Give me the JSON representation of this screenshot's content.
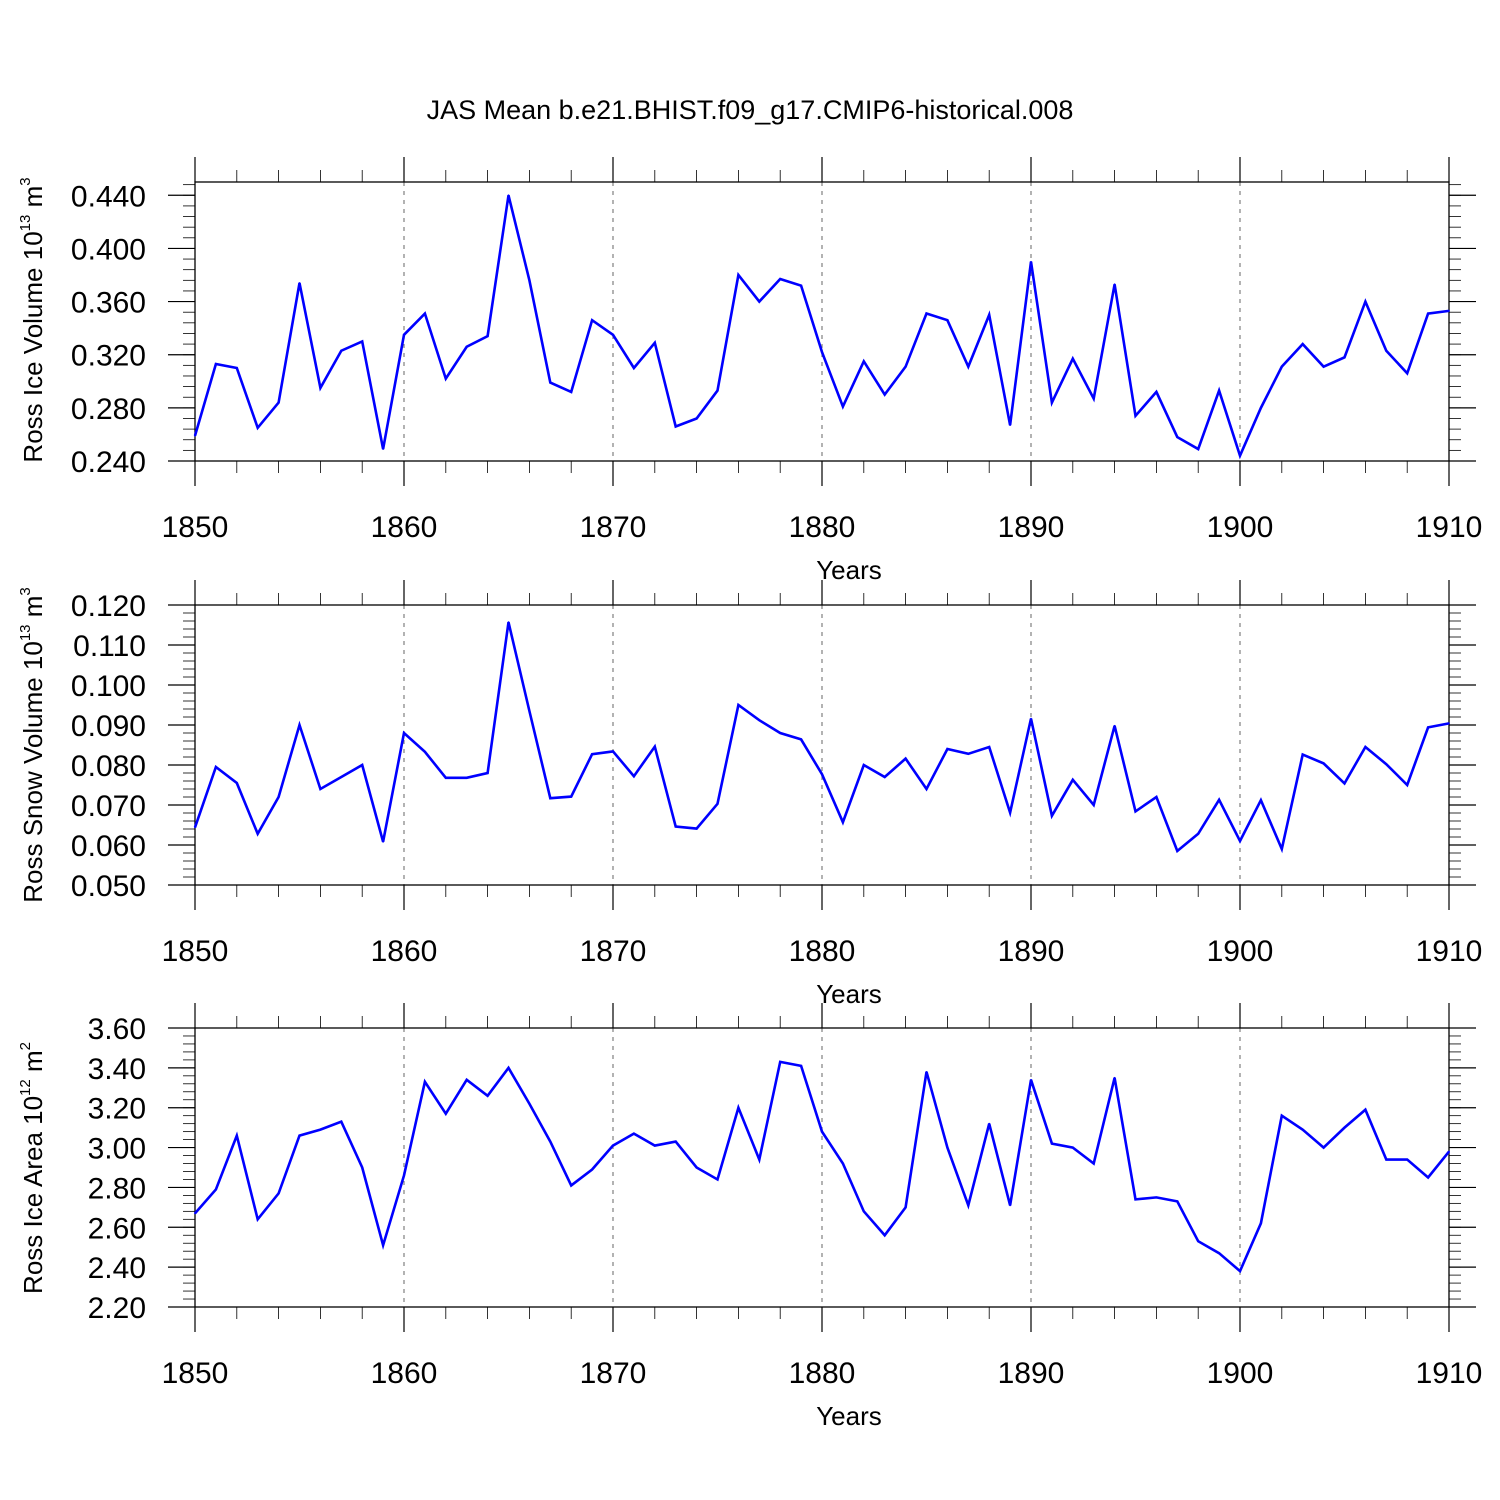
{
  "title": "JAS Mean b.e21.BHIST.f09_g17.CMIP6-historical.008",
  "colors": {
    "line": "#0000ff",
    "grid": "#808080",
    "axis": "#000000"
  },
  "chart_data": [
    {
      "type": "line",
      "title": "JAS Mean b.e21.BHIST.f09_g17.CMIP6-historical.008",
      "ylabel": {
        "text": "Ross Ice Volume 10",
        "exp": "13",
        "unit": " m",
        "unit_exp": "3"
      },
      "xlabel": "Years",
      "xlim": [
        1850,
        1910
      ],
      "ylim": [
        0.24,
        0.45
      ],
      "x_ticks": [
        1850,
        1860,
        1870,
        1880,
        1890,
        1900,
        1910
      ],
      "x_tick_labels": [
        "1850",
        "1860",
        "1870",
        "1880",
        "1890",
        "1900",
        "1910"
      ],
      "y_ticks": [
        0.24,
        0.28,
        0.32,
        0.36,
        0.4,
        0.44
      ],
      "y_tick_labels": [
        "0.240",
        "0.280",
        "0.320",
        "0.360",
        "0.400",
        "0.440"
      ],
      "y_minor_step": 0.008,
      "grid_x": true,
      "series": [
        {
          "name": "Ross Ice Volume",
          "x_start": 1850,
          "values": [
            0.259,
            0.313,
            0.31,
            0.265,
            0.284,
            0.374,
            0.295,
            0.323,
            0.33,
            0.249,
            0.335,
            0.351,
            0.302,
            0.326,
            0.334,
            0.44,
            0.376,
            0.299,
            0.292,
            0.346,
            0.335,
            0.31,
            0.329,
            0.266,
            0.272,
            0.293,
            0.38,
            0.36,
            0.377,
            0.372,
            0.322,
            0.281,
            0.315,
            0.29,
            0.311,
            0.351,
            0.346,
            0.311,
            0.35,
            0.267,
            0.39,
            0.284,
            0.317,
            0.287,
            0.373,
            0.274,
            0.292,
            0.258,
            0.249,
            0.293,
            0.244,
            0.28,
            0.311,
            0.328,
            0.311,
            0.318,
            0.36,
            0.323,
            0.306,
            0.351,
            0.353
          ]
        }
      ]
    },
    {
      "type": "line",
      "ylabel": {
        "text": "Ross Snow Volume 10",
        "exp": "13",
        "unit": " m",
        "unit_exp": "3"
      },
      "xlabel": "Years",
      "xlim": [
        1850,
        1910
      ],
      "ylim": [
        0.05,
        0.12
      ],
      "x_ticks": [
        1850,
        1860,
        1870,
        1880,
        1890,
        1900,
        1910
      ],
      "x_tick_labels": [
        "1850",
        "1860",
        "1870",
        "1880",
        "1890",
        "1900",
        "1910"
      ],
      "y_ticks": [
        0.05,
        0.06,
        0.07,
        0.08,
        0.09,
        0.1,
        0.11,
        0.12
      ],
      "y_tick_labels": [
        "0.050",
        "0.060",
        "0.070",
        "0.080",
        "0.090",
        "0.100",
        "0.110",
        "0.120"
      ],
      "y_minor_step": 0.002,
      "grid_x": true,
      "series": [
        {
          "name": "Ross Snow Volume",
          "x_start": 1850,
          "values": [
            0.0644,
            0.0795,
            0.0755,
            0.0628,
            0.072,
            0.09,
            0.074,
            0.077,
            0.08,
            0.0608,
            0.088,
            0.0833,
            0.0768,
            0.0768,
            0.078,
            0.1157,
            0.0935,
            0.0717,
            0.0721,
            0.0827,
            0.0834,
            0.0772,
            0.0846,
            0.0646,
            0.0641,
            0.0703,
            0.095,
            0.0912,
            0.088,
            0.0864,
            0.0777,
            0.0657,
            0.08,
            0.077,
            0.0816,
            0.074,
            0.084,
            0.0828,
            0.0845,
            0.0681,
            0.0916,
            0.0673,
            0.0763,
            0.07,
            0.0898,
            0.0684,
            0.072,
            0.0585,
            0.0628,
            0.0713,
            0.061,
            0.0712,
            0.059,
            0.0826,
            0.0804,
            0.0754,
            0.0845,
            0.0802,
            0.075,
            0.0894,
            0.0904
          ]
        }
      ]
    },
    {
      "type": "line",
      "ylabel": {
        "text": "Ross Ice Area 10",
        "exp": "12",
        "unit": " m",
        "unit_exp": "2"
      },
      "xlabel": "Years",
      "xlim": [
        1850,
        1910
      ],
      "ylim": [
        2.2,
        3.6
      ],
      "x_ticks": [
        1850,
        1860,
        1870,
        1880,
        1890,
        1900,
        1910
      ],
      "x_tick_labels": [
        "1850",
        "1860",
        "1870",
        "1880",
        "1890",
        "1900",
        "1910"
      ],
      "y_ticks": [
        2.2,
        2.4,
        2.6,
        2.8,
        3.0,
        3.2,
        3.4,
        3.6
      ],
      "y_tick_labels": [
        "2.20",
        "2.40",
        "2.60",
        "2.80",
        "3.00",
        "3.20",
        "3.40",
        "3.60"
      ],
      "y_minor_step": 0.04,
      "grid_x": true,
      "series": [
        {
          "name": "Ross Ice Area",
          "x_start": 1850,
          "values": [
            2.67,
            2.79,
            3.06,
            2.64,
            2.77,
            3.06,
            3.09,
            3.13,
            2.9,
            2.51,
            2.86,
            3.33,
            3.17,
            3.34,
            3.26,
            3.4,
            3.22,
            3.03,
            2.81,
            2.89,
            3.01,
            3.07,
            3.01,
            3.03,
            2.9,
            2.84,
            3.2,
            2.94,
            3.43,
            3.41,
            3.08,
            2.92,
            2.68,
            2.56,
            2.7,
            3.38,
            3.0,
            2.71,
            3.12,
            2.71,
            3.34,
            3.02,
            3.0,
            2.92,
            3.35,
            2.74,
            2.75,
            2.73,
            2.53,
            2.47,
            2.38,
            2.62,
            3.16,
            3.09,
            3.0,
            3.1,
            3.19,
            2.94,
            2.94,
            2.85,
            2.98
          ]
        }
      ]
    }
  ]
}
